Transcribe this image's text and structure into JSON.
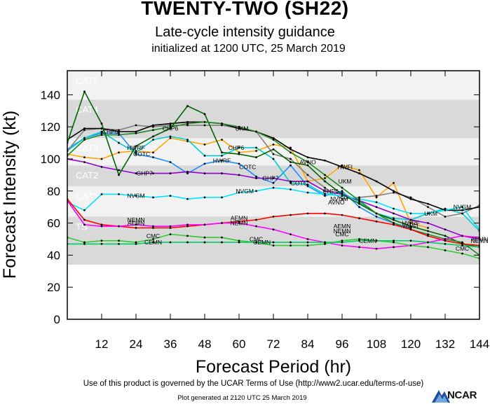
{
  "header": {
    "title": "TWENTY-TWO (SH22)",
    "subtitle": "Late-cycle intensity guidance",
    "initialized": "initialized at 1200 UTC, 25 March 2019"
  },
  "footer": {
    "terms": "Use of this product is governed by the UCAR Terms of Use (http://www2.ucar.edu/terms-of-use)",
    "generated": "Plot generated at 2120 UTC  25 March 2019",
    "logo_text": "NCAR"
  },
  "chart_data": {
    "type": "line",
    "title": "Late-cycle intensity guidance",
    "xlabel": "Forecast Period (hr)",
    "ylabel": "Forecast Intensity (kt)",
    "xlim": [
      0,
      144
    ],
    "ylim": [
      0,
      155
    ],
    "xticks": [
      12,
      24,
      36,
      48,
      60,
      72,
      84,
      96,
      108,
      120,
      132,
      144
    ],
    "yticks": [
      0,
      20,
      40,
      60,
      80,
      100,
      120,
      140
    ],
    "bands": [
      {
        "label": "TS",
        "from": 34,
        "to": 64,
        "shade": true
      },
      {
        "label": "CAT1",
        "from": 64,
        "to": 83,
        "shade": false
      },
      {
        "label": "CAT2",
        "from": 83,
        "to": 96,
        "shade": true
      },
      {
        "label": "CAT3",
        "from": 96,
        "to": 113,
        "shade": false
      },
      {
        "label": "CAT4",
        "from": 113,
        "to": 137,
        "shade": true
      },
      {
        "label": "CAT5",
        "from": 137,
        "to": 155,
        "shade": false
      }
    ],
    "series": [
      {
        "name": "HWRF",
        "color": "#1e8fff",
        "x": [
          0,
          6,
          12,
          18,
          24,
          30,
          36,
          42,
          48,
          54,
          60,
          66,
          72,
          78,
          84,
          90,
          96,
          102,
          108,
          114,
          120
        ],
        "y": [
          106,
          113,
          116,
          116,
          103,
          101,
          98,
          91,
          97,
          99,
          97,
          89,
          85,
          96,
          83,
          77,
          80,
          70,
          64,
          60,
          57
        ],
        "labels": [
          {
            "text": "HWRF",
            "x": 24,
            "y": 107
          },
          {
            "text": "HWRF",
            "x": 54,
            "y": 99
          },
          {
            "text": "HWRF",
            "x": 120,
            "y": 60
          }
        ]
      },
      {
        "name": "HWFI",
        "color": "#ffa500",
        "x": [
          0,
          6,
          12,
          18,
          24,
          30,
          36,
          42,
          48,
          54,
          60,
          66,
          72,
          78,
          84,
          90,
          96,
          102,
          108,
          114,
          120,
          126
        ],
        "y": [
          103,
          101,
          100,
          104,
          105,
          104,
          113,
          111,
          109,
          112,
          104,
          105,
          109,
          107,
          86,
          88,
          96,
          93,
          76,
          85,
          60,
          57
        ],
        "labels": [
          {
            "text": "HWFI",
            "x": 97,
            "y": 95
          },
          {
            "text": "HWFI",
            "x": 120,
            "y": 58
          }
        ]
      },
      {
        "name": "CHP6",
        "color": "#00ced1",
        "x": [
          0,
          6,
          12,
          18,
          24,
          30,
          36,
          42,
          48,
          54,
          60,
          66,
          72,
          78,
          84,
          90,
          96,
          102,
          108,
          114,
          120,
          126,
          132,
          138,
          144
        ],
        "y": [
          105,
          113,
          117,
          110,
          104,
          112,
          114,
          112,
          102,
          102,
          107,
          107,
          100,
          85,
          84,
          78,
          79,
          73,
          66,
          63,
          62,
          66,
          69,
          66,
          55
        ],
        "labels": [
          {
            "text": "CHP6",
            "x": 15,
            "y": 117
          },
          {
            "text": "CHP6",
            "x": 36,
            "y": 119
          },
          {
            "text": "CHP6",
            "x": 59,
            "y": 107
          },
          {
            "text": "CHP6",
            "x": 92,
            "y": 80
          }
        ]
      },
      {
        "name": "GHP7",
        "color": "#9400d3",
        "x": [
          0,
          6,
          12,
          18,
          24,
          30,
          36,
          42,
          48,
          54,
          60,
          66,
          72,
          78,
          84,
          90,
          96,
          102,
          108,
          114,
          120,
          126,
          132,
          138,
          144
        ],
        "y": [
          100,
          98,
          95,
          93,
          91,
          91,
          91,
          92,
          91,
          91,
          90,
          88,
          88,
          86,
          86,
          80,
          78,
          74,
          70,
          66,
          62,
          60,
          56,
          52,
          50
        ],
        "labels": [
          {
            "text": "GHP7",
            "x": 27,
            "y": 91
          },
          {
            "text": "GHP7",
            "x": 71,
            "y": 88
          }
        ]
      },
      {
        "name": "COTC",
        "color": "#808080",
        "x": [
          0,
          6,
          12,
          18,
          24,
          30,
          36,
          42,
          48,
          54,
          60,
          66,
          72,
          78,
          84,
          90,
          96,
          102,
          108,
          114,
          120,
          126,
          132,
          138,
          144
        ],
        "y": [
          105,
          118,
          119,
          118,
          121,
          120,
          121,
          121,
          121,
          121,
          119,
          117,
          103,
          100,
          90,
          82,
          75,
          76,
          77,
          79,
          76,
          70,
          64,
          66,
          71
        ],
        "labels": [
          {
            "text": "COTC",
            "x": 26,
            "y": 103
          },
          {
            "text": "COTC",
            "x": 63,
            "y": 95
          },
          {
            "text": "COTC",
            "x": 81,
            "y": 85
          }
        ]
      },
      {
        "name": "UKM",
        "color": "#000000",
        "x": [
          0,
          6,
          12,
          18,
          24,
          30,
          36,
          42,
          48,
          54,
          60,
          66,
          72,
          78,
          84,
          90,
          96,
          102,
          108,
          114,
          120,
          126,
          132,
          138,
          144
        ],
        "y": [
          112,
          119,
          119,
          117,
          117,
          121,
          122,
          123,
          123,
          122,
          119,
          117,
          113,
          106,
          101,
          99,
          95,
          91,
          86,
          80,
          75,
          72,
          68,
          68,
          70
        ],
        "labels": [
          {
            "text": "UKM",
            "x": 61,
            "y": 119
          },
          {
            "text": "UKM",
            "x": 97,
            "y": 86
          },
          {
            "text": "UKM",
            "x": 127,
            "y": 66
          }
        ]
      },
      {
        "name": "NVGM",
        "color": "#00e5ff",
        "x": [
          0,
          6,
          12,
          18,
          24,
          30,
          36,
          42,
          48,
          54,
          60,
          66,
          72,
          78,
          84,
          90,
          96,
          102,
          108,
          114,
          120,
          126,
          132,
          138,
          144
        ],
        "y": [
          73,
          68,
          78,
          78,
          77,
          76,
          77,
          75,
          76,
          76,
          79,
          80,
          82,
          81,
          79,
          78,
          77,
          75,
          73,
          69,
          66,
          66,
          68,
          70,
          56
        ],
        "labels": [
          {
            "text": "NVGM",
            "x": 24,
            "y": 77
          },
          {
            "text": "NVGM",
            "x": 62,
            "y": 80
          },
          {
            "text": "NVGM",
            "x": 95,
            "y": 75
          },
          {
            "text": "NVGM",
            "x": 138,
            "y": 70
          }
        ]
      },
      {
        "name": "AVNO",
        "color": "#006400",
        "x": [
          0,
          6,
          12,
          18,
          24,
          30,
          36,
          42,
          48,
          54,
          60,
          66,
          72,
          78,
          84,
          90,
          96,
          102,
          108,
          114,
          120,
          126,
          132,
          138,
          144
        ],
        "y": [
          110,
          142,
          122,
          90,
          108,
          114,
          119,
          133,
          128,
          104,
          103,
          101,
          106,
          98,
          96,
          86,
          78,
          72,
          66,
          62,
          58,
          55,
          52,
          47,
          45
        ],
        "labels": [
          {
            "text": "AVNO",
            "x": 84,
            "y": 98
          },
          {
            "text": "AVNO",
            "x": 94,
            "y": 73
          }
        ]
      },
      {
        "name": "OFCL",
        "color": "#228b22",
        "x": [
          0,
          6,
          12,
          18,
          24,
          30,
          36,
          42,
          48,
          54,
          60,
          66,
          72,
          78,
          84,
          90,
          96,
          102,
          108,
          114,
          120,
          126,
          132,
          138,
          144
        ],
        "y": [
          102,
          112,
          115,
          115,
          116,
          118,
          120,
          122,
          123,
          122,
          120,
          117,
          112,
          104,
          98,
          90,
          82,
          74,
          66,
          60,
          56,
          53,
          50,
          48,
          40
        ],
        "labels": []
      },
      {
        "name": "AEMN",
        "color": "#ff0000",
        "x": [
          0,
          6,
          12,
          18,
          24,
          30,
          36,
          42,
          48,
          54,
          60,
          66,
          72,
          78,
          84,
          90,
          96,
          102,
          108,
          114,
          120,
          126,
          132,
          138,
          144
        ],
        "y": [
          75,
          62,
          59,
          58,
          57,
          57,
          57,
          58,
          59,
          60,
          61,
          62,
          64,
          65,
          66,
          66,
          65,
          63,
          61,
          59,
          56,
          52,
          49,
          47,
          46
        ],
        "labels": [
          {
            "text": "AEMN",
            "x": 24,
            "y": 60
          },
          {
            "text": "AEMN",
            "x": 60,
            "y": 63
          },
          {
            "text": "AEMN",
            "x": 96,
            "y": 58
          },
          {
            "text": "AEMN",
            "x": 144,
            "y": 50
          }
        ]
      },
      {
        "name": "NEMN",
        "color": "#ff00ff",
        "x": [
          0,
          6,
          12,
          18,
          24,
          30,
          36,
          42,
          48,
          54,
          60,
          66,
          72,
          78,
          84,
          90,
          96,
          102,
          108,
          114,
          120,
          126,
          132,
          138,
          144
        ],
        "y": [
          74,
          59,
          58,
          58,
          59,
          58,
          58,
          59,
          59,
          60,
          60,
          58,
          56,
          53,
          50,
          48,
          46,
          45,
          44,
          45,
          46,
          48,
          50,
          52,
          51
        ],
        "labels": [
          {
            "text": "NEMN",
            "x": 24,
            "y": 62
          },
          {
            "text": "NEMN",
            "x": 60,
            "y": 60
          },
          {
            "text": "NEMN",
            "x": 96,
            "y": 55
          },
          {
            "text": "NEMN",
            "x": 144,
            "y": 49
          }
        ]
      },
      {
        "name": "CMC",
        "color": "#32cd32",
        "x": [
          0,
          6,
          12,
          18,
          24,
          30,
          36,
          42,
          48,
          54,
          60,
          66,
          72,
          78,
          84,
          90,
          96,
          102,
          108,
          114,
          120,
          126,
          132,
          138,
          144
        ],
        "y": [
          51,
          48,
          49,
          49,
          48,
          50,
          53,
          52,
          51,
          51,
          49,
          48,
          46,
          46,
          46,
          47,
          49,
          50,
          49,
          48,
          46,
          45,
          43,
          41,
          38
        ],
        "labels": [
          {
            "text": "CMC",
            "x": 30,
            "y": 52
          },
          {
            "text": "CMC",
            "x": 66,
            "y": 50
          },
          {
            "text": "CMC",
            "x": 96,
            "y": 53
          },
          {
            "text": "CMC",
            "x": 138,
            "y": 44
          }
        ]
      },
      {
        "name": "CEMN",
        "color": "#00cd66",
        "x": [
          0,
          6,
          12,
          18,
          24,
          30,
          36,
          42,
          48,
          54,
          60,
          66,
          72,
          78,
          84,
          90,
          96,
          102,
          108,
          114,
          120,
          126,
          132,
          138,
          144
        ],
        "y": [
          47,
          47,
          47,
          47,
          47,
          48,
          48,
          48,
          48,
          48,
          48,
          48,
          48,
          48,
          48,
          48,
          48,
          49,
          49,
          49,
          49,
          48,
          47,
          46,
          45
        ],
        "labels": [
          {
            "text": "CEMN",
            "x": 30,
            "y": 48
          },
          {
            "text": "CEMN",
            "x": 68,
            "y": 48
          },
          {
            "text": "CEMN",
            "x": 105,
            "y": 49
          }
        ]
      }
    ]
  }
}
